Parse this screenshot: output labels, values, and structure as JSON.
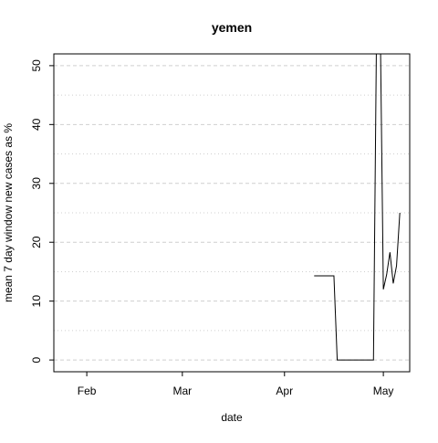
{
  "chart_data": {
    "type": "line",
    "title": "yemen",
    "xlabel": "date",
    "ylabel": "mean  7  day window new cases as %",
    "x_ticks": [
      {
        "label": "Feb",
        "date": "2020-02-01"
      },
      {
        "label": "Mar",
        "date": "2020-03-01"
      },
      {
        "label": "Apr",
        "date": "2020-04-01"
      },
      {
        "label": "May",
        "date": "2020-05-01"
      }
    ],
    "y_ticks": [
      0,
      10,
      20,
      30,
      40,
      50
    ],
    "xlim": [
      "2020-01-22",
      "2020-05-09"
    ],
    "ylim": [
      -2,
      52
    ],
    "grid": {
      "horizontal": true,
      "style": "dashed-major-dotted-minor"
    },
    "series": [
      {
        "color": "#000000",
        "points": [
          {
            "x": "2020-01-22",
            "y": 52
          },
          {
            "x": "2020-01-22",
            "y": 14
          }
        ]
      },
      {
        "color": "#000000",
        "points": [
          {
            "x": "2020-04-10",
            "y": 14.3
          },
          {
            "x": "2020-04-11",
            "y": 14.3
          },
          {
            "x": "2020-04-12",
            "y": 14.3
          },
          {
            "x": "2020-04-13",
            "y": 14.3
          },
          {
            "x": "2020-04-14",
            "y": 14.3
          },
          {
            "x": "2020-04-15",
            "y": 14.3
          },
          {
            "x": "2020-04-16",
            "y": 14.3
          },
          {
            "x": "2020-04-17",
            "y": 0
          },
          {
            "x": "2020-04-18",
            "y": 0
          },
          {
            "x": "2020-04-19",
            "y": 0
          },
          {
            "x": "2020-04-20",
            "y": 0
          },
          {
            "x": "2020-04-21",
            "y": 0
          },
          {
            "x": "2020-04-22",
            "y": 0
          },
          {
            "x": "2020-04-23",
            "y": 0
          },
          {
            "x": "2020-04-24",
            "y": 0
          },
          {
            "x": "2020-04-25",
            "y": 0
          },
          {
            "x": "2020-04-26",
            "y": 0
          },
          {
            "x": "2020-04-27",
            "y": 0
          },
          {
            "x": "2020-04-28",
            "y": 0
          },
          {
            "x": "2020-04-29",
            "y": 60
          },
          {
            "x": "2020-04-30",
            "y": 60
          },
          {
            "x": "2020-05-01",
            "y": 12
          },
          {
            "x": "2020-05-02",
            "y": 14.5
          },
          {
            "x": "2020-05-03",
            "y": 18.3
          },
          {
            "x": "2020-05-04",
            "y": 13
          },
          {
            "x": "2020-05-05",
            "y": 16
          },
          {
            "x": "2020-05-06",
            "y": 25
          }
        ]
      }
    ]
  }
}
